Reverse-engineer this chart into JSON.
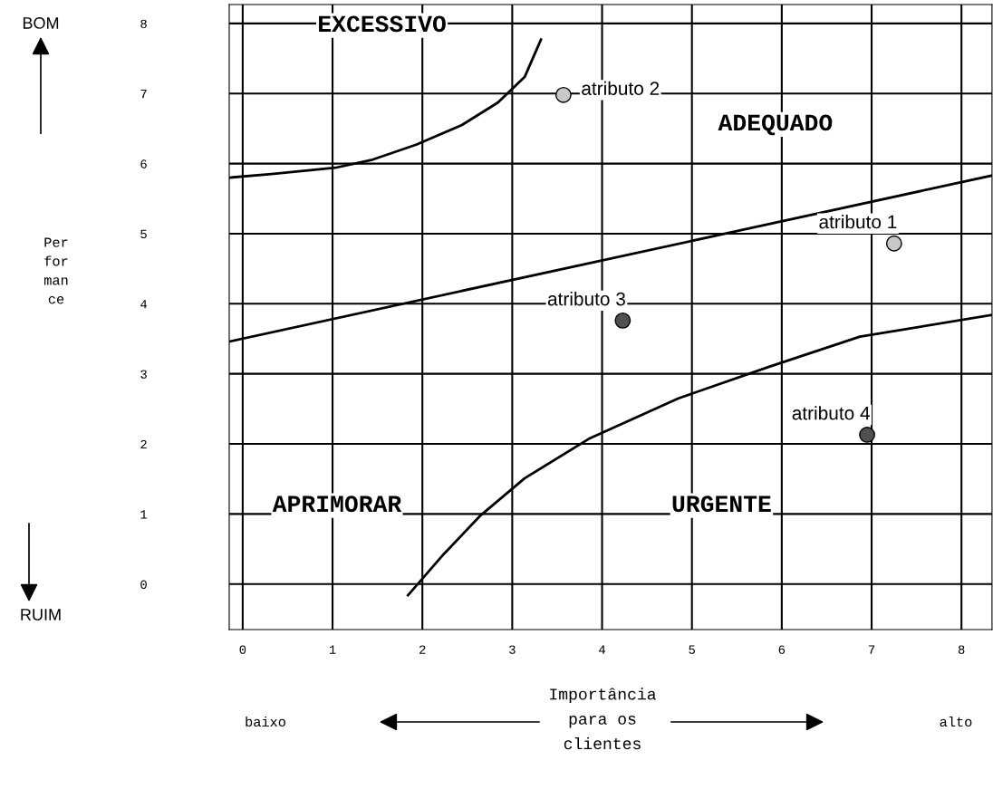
{
  "chart_data": {
    "type": "scatter",
    "xlabel": "Importância\npara os\nclientes",
    "xlim": [
      -0.15,
      8.34
    ],
    "ylim": [
      -0.65,
      8.27
    ],
    "xticks": [
      0,
      1,
      2,
      3,
      4,
      5,
      6,
      7,
      8
    ],
    "yticks": [
      0,
      1,
      2,
      3,
      4,
      5,
      6,
      7,
      8
    ],
    "grid": true,
    "series": [
      {
        "type": "line",
        "color": "#000000",
        "x": [
          -0.15,
          0.32,
          1.03,
          1.43,
          1.93,
          2.44,
          2.84,
          3.14,
          3.32
        ],
        "values": [
          5.8,
          5.85,
          5.94,
          6.05,
          6.27,
          6.55,
          6.87,
          7.24,
          7.77
        ]
      },
      {
        "type": "line",
        "color": "#000000",
        "x": [
          -0.15,
          8.34
        ],
        "values": [
          3.46,
          5.83
        ]
      },
      {
        "type": "line",
        "color": "#000000",
        "x": [
          1.84,
          2.24,
          2.64,
          3.14,
          3.85,
          4.85,
          5.86,
          6.87,
          8.34
        ],
        "values": [
          -0.16,
          0.43,
          0.97,
          1.51,
          2.07,
          2.65,
          3.1,
          3.53,
          3.84
        ]
      },
      {
        "name": "atributo 1",
        "color": "#c8c8c8",
        "marker": "circle",
        "x": [
          7.25
        ],
        "values": [
          4.86
        ]
      },
      {
        "name": "atributo 2",
        "color": "#c8c8c8",
        "marker": "circle",
        "x": [
          3.57
        ],
        "values": [
          6.98
        ]
      },
      {
        "name": "atributo 3",
        "color": "#505050",
        "marker": "circle",
        "x": [
          4.23
        ],
        "values": [
          3.76
        ]
      },
      {
        "name": "atributo 4",
        "color": "#505050",
        "marker": "circle",
        "x": [
          6.95
        ],
        "values": [
          2.13
        ]
      }
    ],
    "annotations": [
      "EXCESSIVO",
      "ADEQUADO",
      "APRIMORAR",
      "URGENTE",
      "BOM",
      "RUIM",
      "baixo",
      "alto",
      "Per\nfor\nman\nce"
    ]
  }
}
